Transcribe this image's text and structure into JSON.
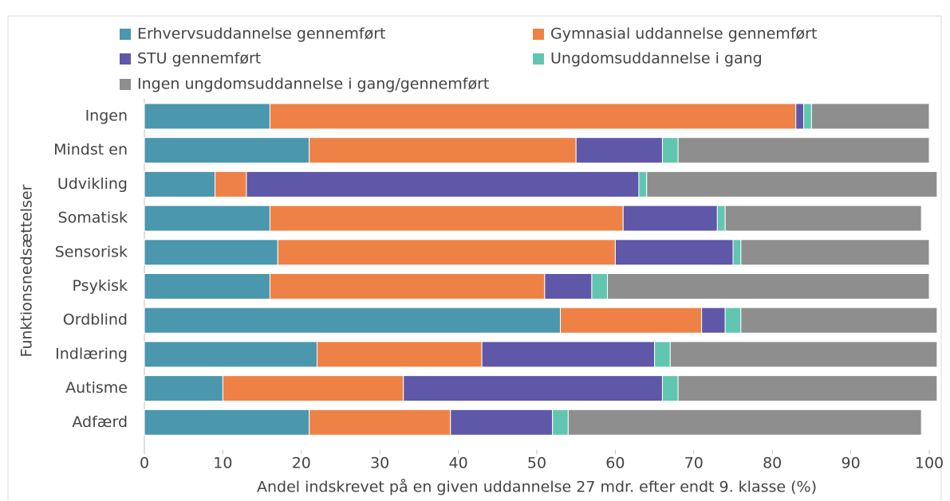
{
  "chart_data": {
    "type": "stacked-bar-horizontal",
    "y_axis_label": "Funktionsnedsættelser",
    "x_axis_label": "Andel indskrevet på en given uddannelse 27 mdr. efter endt 9. klasse (%)",
    "categories": [
      "Ingen",
      "Mindst en",
      "Udvikling",
      "Somatisk",
      "Sensorisk",
      "Psykisk",
      "Ordblind",
      "Indlæring",
      "Autisme",
      "Adfærd"
    ],
    "series": [
      {
        "name": "Erhvervsuddannelse gennemført",
        "color": "#4a97ae",
        "values": [
          16,
          21,
          9,
          16,
          17,
          16,
          53,
          22,
          10,
          21
        ]
      },
      {
        "name": "Gymnasial uddannelse gennemført",
        "color": "#ee8246",
        "values": [
          67,
          34,
          4,
          45,
          43,
          35,
          18,
          21,
          23,
          18
        ]
      },
      {
        "name": "STU gennemført",
        "color": "#5f57a8",
        "values": [
          1,
          11,
          50,
          12,
          15,
          6,
          3,
          22,
          33,
          13
        ]
      },
      {
        "name": "Ungdomsuddannelse i gang",
        "color": "#61c6b0",
        "values": [
          1,
          2,
          1,
          1,
          1,
          2,
          2,
          2,
          2,
          2
        ]
      },
      {
        "name": "Ingen ungdomsuddannelse i gang/gennemført",
        "color": "#8e8e8e",
        "values": [
          15,
          32,
          37,
          25,
          24,
          41,
          25,
          34,
          33,
          45
        ]
      }
    ],
    "xlim": [
      0,
      100
    ],
    "xticks": [
      0,
      10,
      20,
      30,
      40,
      50,
      60,
      70,
      80,
      90,
      100
    ]
  }
}
